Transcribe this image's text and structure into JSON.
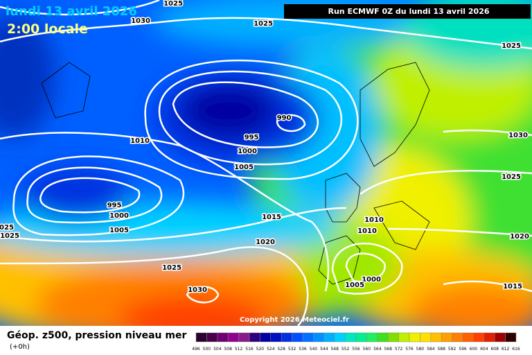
{
  "header": {
    "date": "lundi 13 avril 2026",
    "time": "2:00 locale",
    "run": "Run ECMWF 0Z du lundi 13 avril 2026"
  },
  "isobar_labels": [
    "1025",
    "1030",
    "1025",
    "1025",
    "990",
    "995",
    "1000",
    "1010",
    "1005",
    "1030",
    "1025",
    "995",
    "1000",
    "1005",
    "1015",
    "1010",
    "1010",
    "1020",
    "1025",
    "1025",
    "1020",
    "1025",
    "1030",
    "1000",
    "1005",
    "1015"
  ],
  "copyright": "Copyright 2026 Meteociel.fr",
  "footer": {
    "title": "Géop. z500, pression niveau mer",
    "subtitle": "(+0h)"
  },
  "scale": {
    "labels": [
      "496",
      "500",
      "504",
      "508",
      "512",
      "516",
      "520",
      "524",
      "528",
      "532",
      "536",
      "540",
      "544",
      "548",
      "552",
      "556",
      "560",
      "564",
      "568",
      "572",
      "576",
      "580",
      "584",
      "588",
      "592",
      "596",
      "600",
      "604",
      "608",
      "612",
      "616"
    ],
    "colors": [
      "#2a0030",
      "#48004a",
      "#700070",
      "#900090",
      "#8a1a8a",
      "#300080",
      "#0000a0",
      "#0010c0",
      "#0030e0",
      "#0050ff",
      "#0070ff",
      "#0090ff",
      "#00b0ff",
      "#00d0ff",
      "#00e8c0",
      "#00f090",
      "#20f060",
      "#40e020",
      "#80e000",
      "#c0f000",
      "#f0f000",
      "#ffe000",
      "#ffc000",
      "#ffa000",
      "#ff8000",
      "#ff6000",
      "#ff4000",
      "#e02000",
      "#a00000",
      "#300000"
    ]
  }
}
